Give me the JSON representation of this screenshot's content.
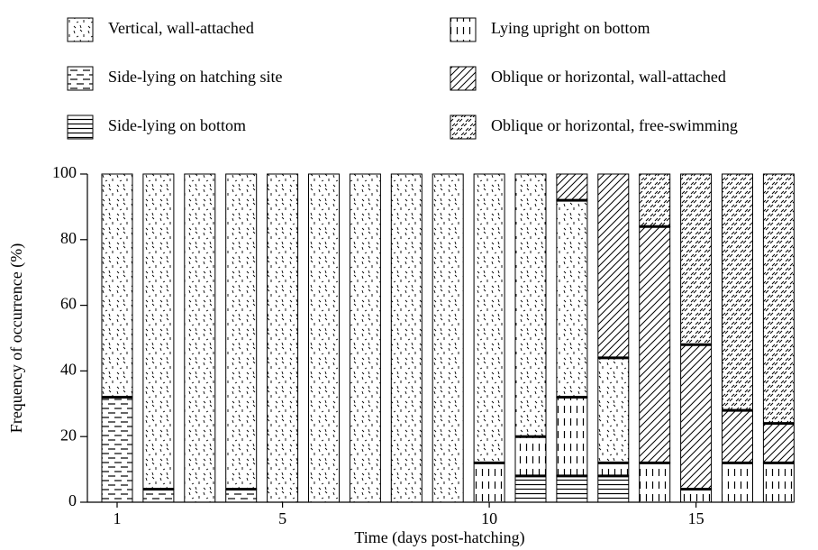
{
  "chart_data": {
    "type": "stacked-bar",
    "xlabel": "Time (days post-hatching)",
    "ylabel": "Frequency of occurrence (%)",
    "categories": [
      "1",
      null,
      null,
      null,
      "5",
      null,
      null,
      null,
      null,
      "10",
      null,
      null,
      null,
      null,
      "15",
      null,
      null
    ],
    "series": [
      {
        "name": "Side-lying on hatching site",
        "color": "#000000",
        "values": [
          32,
          4,
          0,
          4,
          0,
          0,
          0,
          0,
          0,
          0,
          0,
          0,
          0,
          0,
          0,
          0,
          0
        ]
      },
      {
        "name": "Side-lying on bottom",
        "color": "#000000",
        "values": [
          0,
          0,
          0,
          0,
          0,
          0,
          0,
          0,
          0,
          0,
          8,
          8,
          8,
          0,
          0,
          0,
          0
        ]
      },
      {
        "name": "Lying upright on bottom",
        "color": "#000000",
        "values": [
          0,
          0,
          0,
          0,
          0,
          0,
          0,
          0,
          0,
          12,
          12,
          24,
          4,
          12,
          4,
          12,
          12
        ]
      },
      {
        "name": "Vertical, wall-attached",
        "color": "#000000",
        "values": [
          68,
          96,
          100,
          96,
          100,
          100,
          100,
          100,
          100,
          88,
          80,
          60,
          32,
          0,
          0,
          0,
          0
        ]
      },
      {
        "name": "Oblique or horizontal, wall-attached",
        "color": "#000000",
        "values": [
          0,
          0,
          0,
          0,
          0,
          0,
          0,
          0,
          0,
          0,
          0,
          8,
          56,
          72,
          44,
          16,
          12
        ]
      },
      {
        "name": "Oblique or horizontal, free-swimming",
        "color": "#000000",
        "values": [
          0,
          0,
          0,
          0,
          0,
          0,
          0,
          0,
          0,
          0,
          0,
          0,
          0,
          16,
          52,
          72,
          76
        ]
      }
    ],
    "ylim": [
      0,
      100
    ],
    "yticks": [
      0,
      20,
      40,
      60,
      80,
      100
    ]
  }
}
